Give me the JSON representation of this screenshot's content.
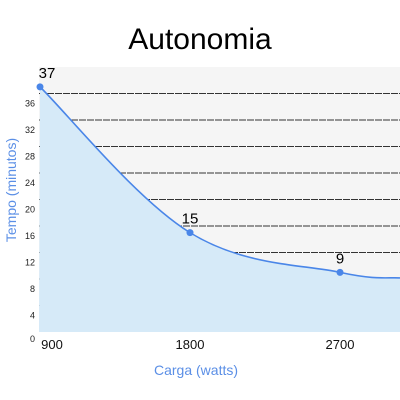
{
  "chart_data": {
    "type": "area",
    "title": "Autonomia",
    "xlabel": "Carga (watts)",
    "ylabel": "Tempo (minutos)",
    "x": [
      900,
      1800,
      2700
    ],
    "x_ticks": [
      "900",
      "1800",
      "2700"
    ],
    "y_ticks": [
      "0",
      "4",
      "8",
      "12",
      "16",
      "20",
      "24",
      "28",
      "32",
      "36"
    ],
    "ylim": [
      0,
      40
    ],
    "series": [
      {
        "values": [
          37,
          15,
          9
        ],
        "data_labels": [
          "37",
          "15",
          "9"
        ]
      }
    ],
    "grid": true,
    "colors": {
      "line": "#4a86e8",
      "fill": "#d6eaf8",
      "point": "#4a86e8",
      "axis_label": "#5b8fe6",
      "plot_bg": "#f5f5f5",
      "grid": "#333333"
    }
  }
}
